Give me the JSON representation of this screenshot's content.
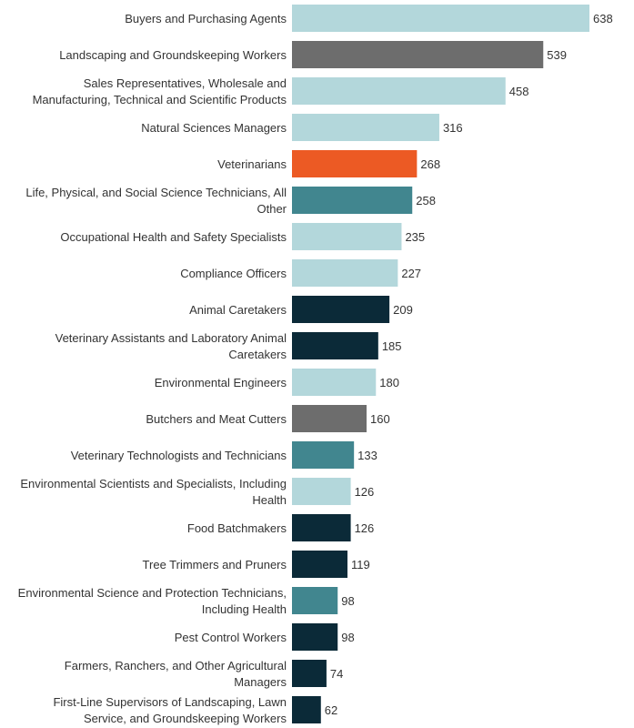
{
  "chart_data": {
    "type": "bar",
    "orientation": "horizontal",
    "title": "",
    "xlabel": "",
    "ylabel": "",
    "xlim": [
      0,
      638
    ],
    "grid": false,
    "legend": "none",
    "categories": [
      [
        "Buyers and Purchasing Agents"
      ],
      [
        "Landscaping and Groundskeeping Workers"
      ],
      [
        "Sales Representatives, Wholesale and",
        "Manufacturing, Technical and Scientific Products"
      ],
      [
        "Natural Sciences Managers"
      ],
      [
        "Veterinarians"
      ],
      [
        "Life, Physical, and Social Science Technicians, All",
        "Other"
      ],
      [
        "Occupational Health and Safety Specialists"
      ],
      [
        "Compliance Officers"
      ],
      [
        "Animal Caretakers"
      ],
      [
        "Veterinary Assistants and Laboratory Animal",
        "Caretakers"
      ],
      [
        "Environmental Engineers"
      ],
      [
        "Butchers and Meat Cutters"
      ],
      [
        "Veterinary Technologists and Technicians"
      ],
      [
        "Environmental Scientists and Specialists, Including",
        "Health"
      ],
      [
        "Food Batchmakers"
      ],
      [
        "Tree Trimmers and Pruners"
      ],
      [
        "Environmental Science and Protection Technicians,",
        "Including Health"
      ],
      [
        "Pest Control Workers"
      ],
      [
        "Farmers, Ranchers, and Other Agricultural",
        "Managers"
      ],
      [
        "First-Line Supervisors of Landscaping, Lawn",
        "Service, and Groundskeeping Workers"
      ]
    ],
    "values": [
      638,
      539,
      458,
      316,
      268,
      258,
      235,
      227,
      209,
      185,
      180,
      160,
      133,
      126,
      126,
      119,
      98,
      98,
      74,
      62
    ],
    "colors": [
      "#b3d7db",
      "#6d6d6d",
      "#b3d7db",
      "#b3d7db",
      "#ec5a24",
      "#41868f",
      "#b3d7db",
      "#b3d7db",
      "#0b2a38",
      "#0b2a38",
      "#b3d7db",
      "#6d6d6d",
      "#41868f",
      "#b3d7db",
      "#0b2a38",
      "#0b2a38",
      "#41868f",
      "#0b2a38",
      "#0b2a38",
      "#0b2a38"
    ]
  }
}
